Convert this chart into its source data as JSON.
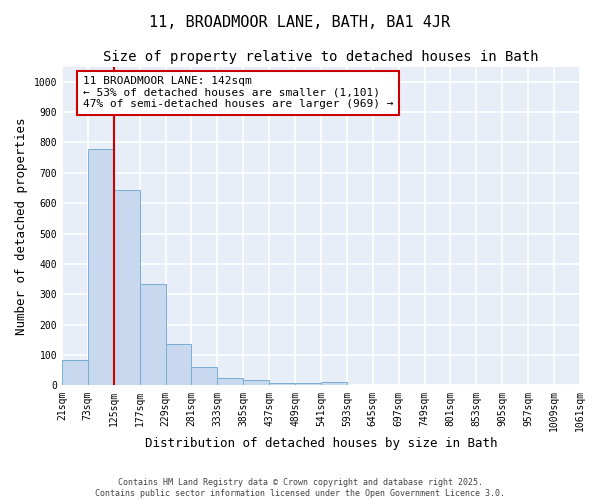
{
  "title1": "11, BROADMOOR LANE, BATH, BA1 4JR",
  "title2": "Size of property relative to detached houses in Bath",
  "xlabel": "Distribution of detached houses by size in Bath",
  "ylabel": "Number of detached properties",
  "bar_values": [
    85,
    780,
    645,
    335,
    135,
    60,
    23,
    18,
    9,
    8,
    10,
    0,
    0,
    0,
    0,
    0,
    0,
    0,
    0,
    0
  ],
  "bin_labels": [
    "21sqm",
    "73sqm",
    "125sqm",
    "177sqm",
    "229sqm",
    "281sqm",
    "333sqm",
    "385sqm",
    "437sqm",
    "489sqm",
    "541sqm",
    "593sqm",
    "645sqm",
    "697sqm",
    "749sqm",
    "801sqm",
    "853sqm",
    "905sqm",
    "957sqm",
    "1009sqm",
    "1061sqm"
  ],
  "bar_color": "#c8d8ee",
  "bar_edge_color": "#7aadd4",
  "line_color": "#cc0000",
  "red_line_x": 2,
  "annotation_text": "11 BROADMOOR LANE: 142sqm\n← 53% of detached houses are smaller (1,101)\n47% of semi-detached houses are larger (969) →",
  "ylim": [
    0,
    1050
  ],
  "yticks": [
    0,
    100,
    200,
    300,
    400,
    500,
    600,
    700,
    800,
    900,
    1000
  ],
  "bg_color": "#ffffff",
  "plot_bg_color": "#e8eef8",
  "grid_color": "#ffffff",
  "footer_line1": "Contains HM Land Registry data © Crown copyright and database right 2025.",
  "footer_line2": "Contains public sector information licensed under the Open Government Licence 3.0.",
  "title1_fontsize": 11,
  "title2_fontsize": 10,
  "xlabel_fontsize": 9,
  "ylabel_fontsize": 9,
  "tick_fontsize": 7,
  "annot_fontsize": 8
}
